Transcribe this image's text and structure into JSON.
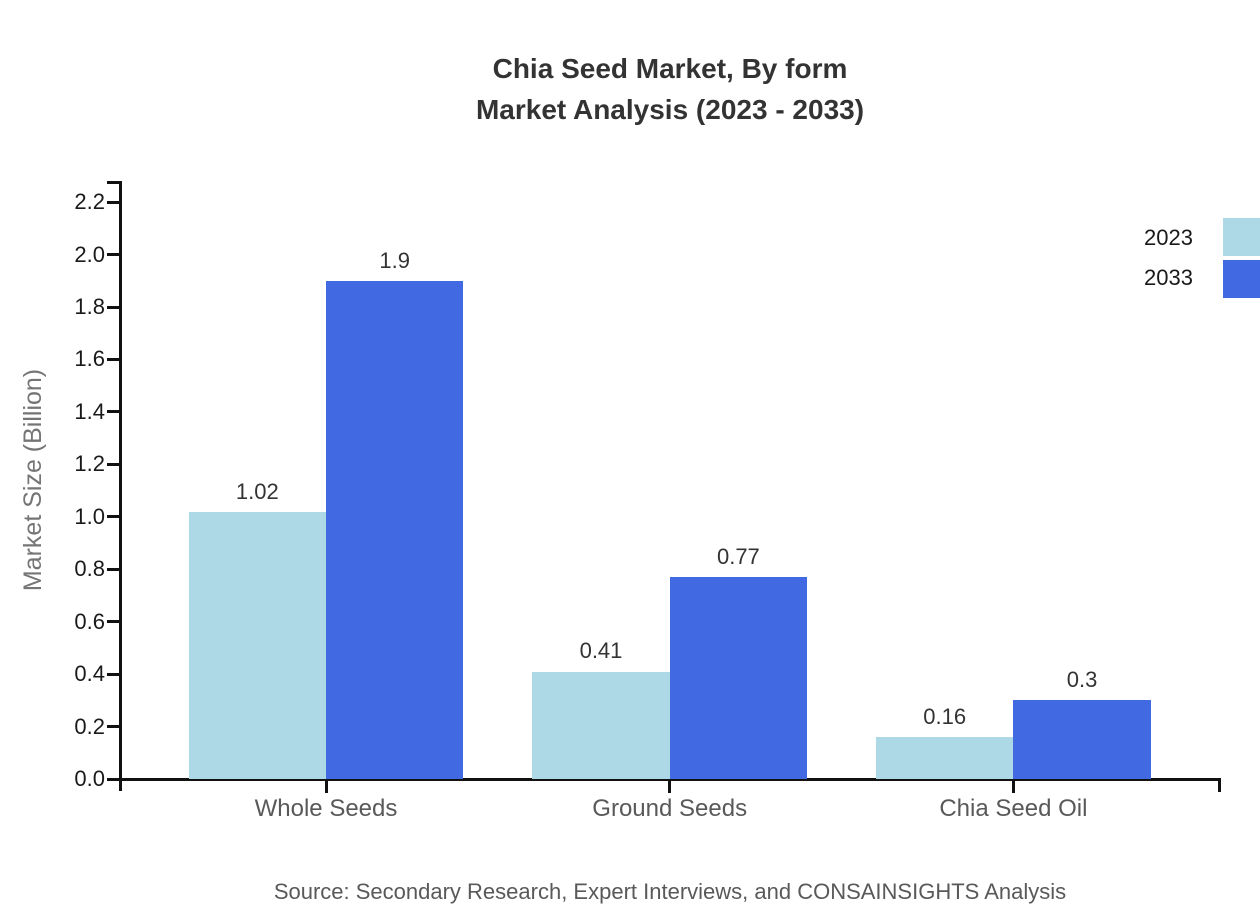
{
  "title": {
    "line1": "Chia Seed Market, By form",
    "line2": "Market Analysis (2023 - 2033)"
  },
  "source": "Source: Secondary Research, Expert Interviews, and CONSAINSIGHTS Analysis",
  "chart_data": {
    "type": "bar",
    "title": "Chia Seed Market, By form Market Analysis (2023 - 2033)",
    "categories": [
      "Whole Seeds",
      "Ground Seeds",
      "Chia Seed Oil"
    ],
    "series": [
      {
        "name": "2023",
        "color": "#ADD8E6",
        "values": [
          1.02,
          0.41,
          0.16
        ],
        "labels": [
          "1.02",
          "0.41",
          "0.16"
        ]
      },
      {
        "name": "2033",
        "color": "#4169E1",
        "values": [
          1.9,
          0.77,
          0.3
        ],
        "labels": [
          "1.9",
          "0.77",
          "0.3"
        ]
      }
    ],
    "xlabel": "",
    "ylabel": "Market Size (Billion)",
    "ylim": [
      0,
      2.2
    ],
    "ytick_step": 0.2,
    "yticks": [
      "0.0",
      "0.2",
      "0.4",
      "0.6",
      "0.8",
      "1.0",
      "1.2",
      "1.4",
      "1.6",
      "1.8",
      "2.0",
      "2.2"
    ],
    "grid": false,
    "legend_position": "top-right",
    "value_labels_shown": true
  },
  "colors": {
    "series_2023": "#ADD8E6",
    "series_2033": "#4169E1",
    "axis": "#111111",
    "title_text": "#333333",
    "tick_text": "#1a1a1a",
    "category_text": "#595959",
    "axis_label_text": "#757575",
    "source_text": "#595959",
    "background": "#ffffff"
  }
}
